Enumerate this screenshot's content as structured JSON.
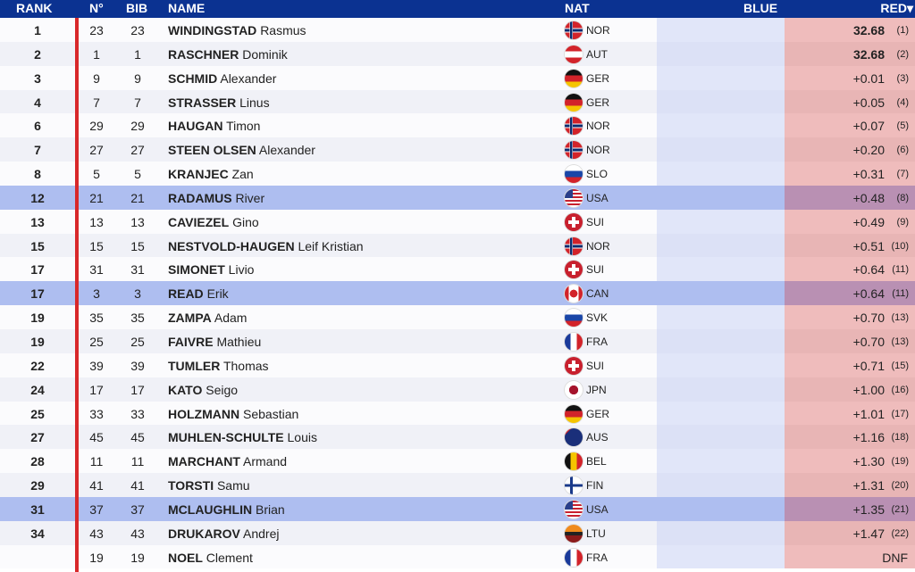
{
  "header": {
    "rank": "RANK",
    "no": "N°",
    "bib": "BIB",
    "name": "NAME",
    "nat": "NAT",
    "blue": "BLUE",
    "red": "RED▾"
  },
  "rows": [
    {
      "rank": "1",
      "no": "23",
      "bib": "23",
      "last": "WINDINGSTAD",
      "first": "Rasmus",
      "nat": "NOR",
      "time": "32.68",
      "pos": "(1)",
      "hl": false
    },
    {
      "rank": "2",
      "no": "1",
      "bib": "1",
      "last": "RASCHNER",
      "first": "Dominik",
      "nat": "AUT",
      "time": "32.68",
      "pos": "(2)",
      "hl": false
    },
    {
      "rank": "3",
      "no": "9",
      "bib": "9",
      "last": "SCHMID",
      "first": "Alexander",
      "nat": "GER",
      "time": "+0.01",
      "pos": "(3)",
      "hl": false
    },
    {
      "rank": "4",
      "no": "7",
      "bib": "7",
      "last": "STRASSER",
      "first": "Linus",
      "nat": "GER",
      "time": "+0.05",
      "pos": "(4)",
      "hl": false
    },
    {
      "rank": "6",
      "no": "29",
      "bib": "29",
      "last": "HAUGAN",
      "first": "Timon",
      "nat": "NOR",
      "time": "+0.07",
      "pos": "(5)",
      "hl": false
    },
    {
      "rank": "7",
      "no": "27",
      "bib": "27",
      "last": "STEEN OLSEN",
      "first": "Alexander",
      "nat": "NOR",
      "time": "+0.20",
      "pos": "(6)",
      "hl": false
    },
    {
      "rank": "8",
      "no": "5",
      "bib": "5",
      "last": "KRANJEC",
      "first": "Zan",
      "nat": "SLO",
      "time": "+0.31",
      "pos": "(7)",
      "hl": false
    },
    {
      "rank": "12",
      "no": "21",
      "bib": "21",
      "last": "RADAMUS",
      "first": "River",
      "nat": "USA",
      "time": "+0.48",
      "pos": "(8)",
      "hl": true
    },
    {
      "rank": "13",
      "no": "13",
      "bib": "13",
      "last": "CAVIEZEL",
      "first": "Gino",
      "nat": "SUI",
      "time": "+0.49",
      "pos": "(9)",
      "hl": false
    },
    {
      "rank": "15",
      "no": "15",
      "bib": "15",
      "last": "NESTVOLD-HAUGEN",
      "first": "Leif Kristian",
      "nat": "NOR",
      "time": "+0.51",
      "pos": "(10)",
      "hl": false
    },
    {
      "rank": "17",
      "no": "31",
      "bib": "31",
      "last": "SIMONET",
      "first": "Livio",
      "nat": "SUI",
      "time": "+0.64",
      "pos": "(11)",
      "hl": false
    },
    {
      "rank": "17",
      "no": "3",
      "bib": "3",
      "last": "READ",
      "first": "Erik",
      "nat": "CAN",
      "time": "+0.64",
      "pos": "(11)",
      "hl": true
    },
    {
      "rank": "19",
      "no": "35",
      "bib": "35",
      "last": "ZAMPA",
      "first": "Adam",
      "nat": "SVK",
      "time": "+0.70",
      "pos": "(13)",
      "hl": false
    },
    {
      "rank": "19",
      "no": "25",
      "bib": "25",
      "last": "FAIVRE",
      "first": "Mathieu",
      "nat": "FRA",
      "time": "+0.70",
      "pos": "(13)",
      "hl": false
    },
    {
      "rank": "22",
      "no": "39",
      "bib": "39",
      "last": "TUMLER",
      "first": "Thomas",
      "nat": "SUI",
      "time": "+0.71",
      "pos": "(15)",
      "hl": false
    },
    {
      "rank": "24",
      "no": "17",
      "bib": "17",
      "last": "KATO",
      "first": "Seigo",
      "nat": "JPN",
      "time": "+1.00",
      "pos": "(16)",
      "hl": false
    },
    {
      "rank": "25",
      "no": "33",
      "bib": "33",
      "last": "HOLZMANN",
      "first": "Sebastian",
      "nat": "GER",
      "time": "+1.01",
      "pos": "(17)",
      "hl": false
    },
    {
      "rank": "27",
      "no": "45",
      "bib": "45",
      "last": "MUHLEN-SCHULTE",
      "first": "Louis",
      "nat": "AUS",
      "time": "+1.16",
      "pos": "(18)",
      "hl": false
    },
    {
      "rank": "28",
      "no": "11",
      "bib": "11",
      "last": "MARCHANT",
      "first": "Armand",
      "nat": "BEL",
      "time": "+1.30",
      "pos": "(19)",
      "hl": false
    },
    {
      "rank": "29",
      "no": "41",
      "bib": "41",
      "last": "TORSTI",
      "first": "Samu",
      "nat": "FIN",
      "time": "+1.31",
      "pos": "(20)",
      "hl": false
    },
    {
      "rank": "31",
      "no": "37",
      "bib": "37",
      "last": "MCLAUGHLIN",
      "first": "Brian",
      "nat": "USA",
      "time": "+1.35",
      "pos": "(21)",
      "hl": true
    },
    {
      "rank": "34",
      "no": "43",
      "bib": "43",
      "last": "DRUKAROV",
      "first": "Andrej",
      "nat": "LTU",
      "time": "+1.47",
      "pos": "(22)",
      "hl": false
    },
    {
      "rank": "",
      "no": "19",
      "bib": "19",
      "last": "NOEL",
      "first": "Clement",
      "nat": "FRA",
      "time": "DNF",
      "pos": "",
      "hl": false
    }
  ]
}
